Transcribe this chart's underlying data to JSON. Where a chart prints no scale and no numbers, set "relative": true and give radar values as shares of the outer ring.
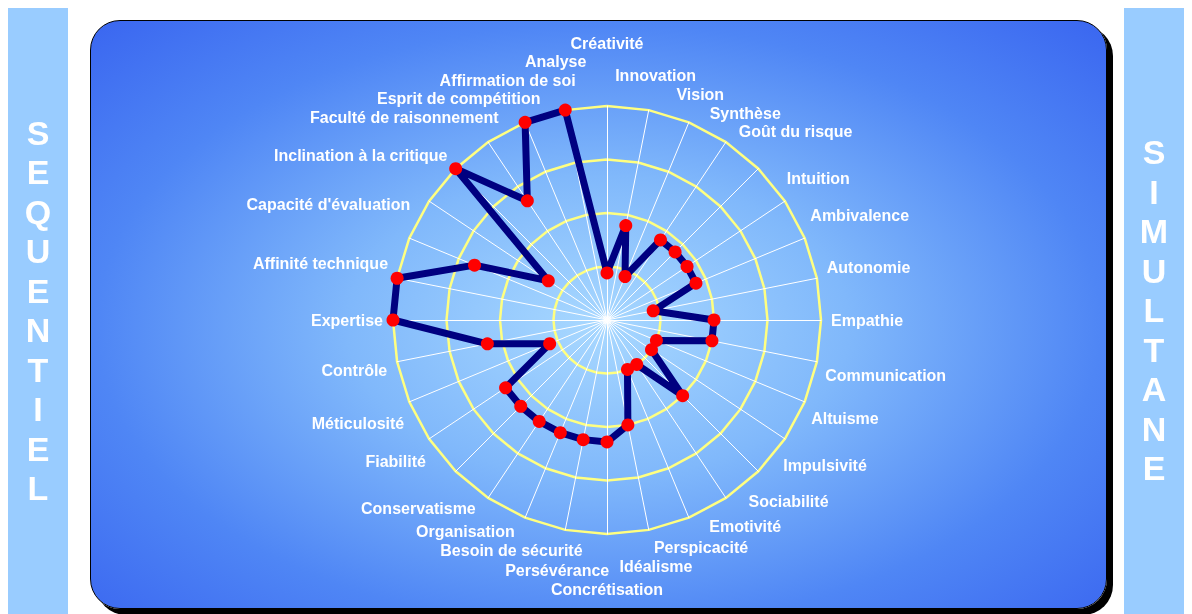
{
  "chart_data": {
    "type": "radar",
    "relative": true,
    "grid": true,
    "marker": "circle",
    "line_style": "solid",
    "categories": [
      "Créativité",
      "Innovation",
      "Vision",
      "Synthèse",
      "Goût du risque",
      "Intuition",
      "Ambivalence",
      "Autonomie",
      "Empathie",
      "Communication",
      "Altuisme",
      "Impulsivité",
      "Sociabilité",
      "Emotivité",
      "Perspicacité",
      "Idéalisme",
      "Concrétisation",
      "Persévérance",
      "Besoin de sécurité",
      "Organisation",
      "Conservatisme",
      "Fiabilité",
      "Méticulosité",
      "Contrôle",
      "Expertise",
      "Affinité technique",
      "Capacité d'évaluation",
      "Inclination à la critique",
      "Faculté de raisonnement",
      "Esprit de compétition",
      "Affirmation de soi",
      "Analyse"
    ],
    "series": [
      {
        "color": "#000080",
        "values": [
          0.22,
          0.45,
          0.22,
          0.45,
          0.45,
          0.45,
          0.45,
          0.22,
          0.5,
          0.5,
          0.25,
          0.25,
          0.5,
          0.25,
          0.25,
          0.5,
          0.57,
          0.57,
          0.57,
          0.57,
          0.57,
          0.57,
          0.29,
          0.57,
          1.0,
          1.0,
          0.67,
          0.33,
          1.0,
          0.67,
          1.0,
          1.0
        ]
      }
    ],
    "annotations": [
      "SEQUENTIEL",
      "SIMULTANE"
    ]
  }
}
